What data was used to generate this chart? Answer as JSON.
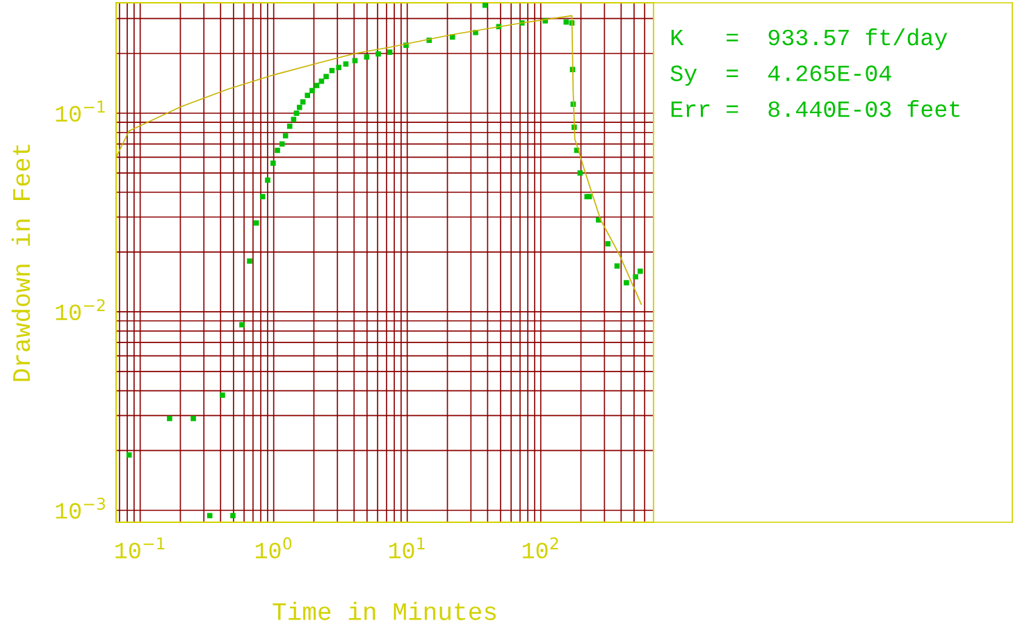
{
  "chart_data": {
    "type": "scatter",
    "xlabel": "Time in Minutes",
    "ylabel": "Drawdown in Feet",
    "log": "xy",
    "grid": true,
    "xlim": [
      0.066,
      700
    ],
    "ylim": [
      0.00087,
      0.36
    ],
    "xticks": [
      {
        "value": 0.07,
        "label": null
      },
      {
        "value": 0.08,
        "label": null
      },
      {
        "value": 0.09,
        "label": null
      },
      {
        "value": 0.1,
        "label": "10$^{−1}$"
      },
      {
        "value": 0.2,
        "label": null
      },
      {
        "value": 0.3,
        "label": null
      },
      {
        "value": 0.4,
        "label": null
      },
      {
        "value": 0.5,
        "label": null
      },
      {
        "value": 0.6,
        "label": null
      },
      {
        "value": 0.7,
        "label": null
      },
      {
        "value": 0.8,
        "label": null
      },
      {
        "value": 0.9,
        "label": null
      },
      {
        "value": 1,
        "label": "10$^{0}$"
      },
      {
        "value": 2,
        "label": null
      },
      {
        "value": 3,
        "label": null
      },
      {
        "value": 4,
        "label": null
      },
      {
        "value": 5,
        "label": null
      },
      {
        "value": 6,
        "label": null
      },
      {
        "value": 7,
        "label": null
      },
      {
        "value": 8,
        "label": null
      },
      {
        "value": 9,
        "label": null
      },
      {
        "value": 10,
        "label": "10$^{1}$"
      },
      {
        "value": 20,
        "label": null
      },
      {
        "value": 30,
        "label": null
      },
      {
        "value": 40,
        "label": null
      },
      {
        "value": 50,
        "label": null
      },
      {
        "value": 60,
        "label": null
      },
      {
        "value": 70,
        "label": null
      },
      {
        "value": 80,
        "label": null
      },
      {
        "value": 90,
        "label": null
      },
      {
        "value": 100,
        "label": "10$^{2}$"
      },
      {
        "value": 200,
        "label": null
      },
      {
        "value": 300,
        "label": null
      },
      {
        "value": 400,
        "label": null
      },
      {
        "value": 500,
        "label": null
      },
      {
        "value": 600,
        "label": null
      }
    ],
    "yticks": [
      {
        "value": 0.001,
        "label": "10$^{−3}$"
      },
      {
        "value": 0.002,
        "label": null
      },
      {
        "value": 0.003,
        "label": null
      },
      {
        "value": 0.004,
        "label": null
      },
      {
        "value": 0.005,
        "label": null
      },
      {
        "value": 0.006,
        "label": null
      },
      {
        "value": 0.007,
        "label": null
      },
      {
        "value": 0.008,
        "label": null
      },
      {
        "value": 0.009,
        "label": null
      },
      {
        "value": 0.01,
        "label": "10$^{−2}$"
      },
      {
        "value": 0.02,
        "label": null
      },
      {
        "value": 0.03,
        "label": null
      },
      {
        "value": 0.04,
        "label": null
      },
      {
        "value": 0.05,
        "label": null
      },
      {
        "value": 0.06,
        "label": null
      },
      {
        "value": 0.07,
        "label": null
      },
      {
        "value": 0.08,
        "label": null
      },
      {
        "value": 0.09,
        "label": null
      },
      {
        "value": 0.1,
        "label": "10$^{−1}$"
      },
      {
        "value": 0.2,
        "label": null
      },
      {
        "value": 0.3,
        "label": null
      }
    ],
    "series": [
      {
        "color": "#00c000",
        "marker": "square",
        "x": [
          0.0826,
          0.166,
          0.25,
          0.332,
          0.413,
          0.495,
          0.578,
          0.66,
          0.741,
          0.826,
          0.901,
          0.99,
          1.066,
          1.155,
          1.226,
          1.318,
          1.41,
          1.48,
          1.56,
          1.655,
          1.79,
          1.94,
          2.1,
          2.28,
          2.47,
          2.73,
          3.07,
          3.47,
          4.06,
          4.97,
          6.07,
          7.4,
          9.8,
          14.6,
          21.8,
          32.5,
          38.3,
          48.5,
          72.3,
          108,
          155,
          171,
          173,
          175,
          178,
          186,
          197,
          222,
          231,
          271,
          318,
          373,
          438,
          513,
          556
        ],
        "values": [
          0.0019,
          0.0029,
          0.0029,
          0.00094,
          0.0038,
          0.00094,
          0.0086,
          0.018,
          0.028,
          0.038,
          0.046,
          0.056,
          0.065,
          0.07,
          0.077,
          0.086,
          0.093,
          0.1,
          0.107,
          0.114,
          0.123,
          0.13,
          0.138,
          0.145,
          0.153,
          0.164,
          0.17,
          0.177,
          0.184,
          0.192,
          0.199,
          0.203,
          0.22,
          0.233,
          0.242,
          0.255,
          0.35,
          0.273,
          0.285,
          0.292,
          0.288,
          0.285,
          0.166,
          0.111,
          0.085,
          0.065,
          0.05,
          0.038,
          0.038,
          0.029,
          0.022,
          0.017,
          0.014,
          0.015,
          0.016
        ]
      },
      {
        "type": "line",
        "color": "#c8b400",
        "x": [
          0.066,
          0.0826,
          0.203,
          0.452,
          1.0,
          2.23,
          4.06,
          7.4,
          21.8,
          72.3,
          171,
          175,
          180,
          192,
          212,
          281,
          388,
          566
        ],
        "values": [
          0.06,
          0.0815,
          0.108,
          0.132,
          0.156,
          0.18,
          0.2,
          0.215,
          0.249,
          0.285,
          0.31,
          0.127,
          0.074,
          0.065,
          0.052,
          0.029,
          0.0194,
          0.0109
        ]
      }
    ],
    "annotations": [
      "K   =  933.57 ft/day",
      "Sy  =  4.265E-04",
      "Err =  8.440E-03 feet"
    ]
  }
}
